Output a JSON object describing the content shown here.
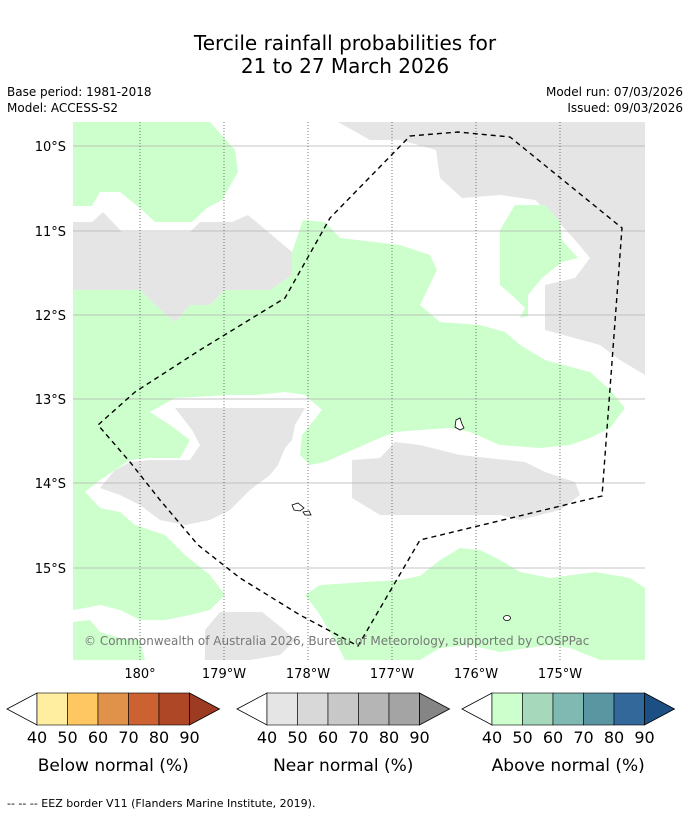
{
  "title_line1": "Tercile rainfall probabilities for",
  "title_line2": "21 to 27 March 2026",
  "base_period": "Base period: 1981-2018",
  "model": "Model: ACCESS-S2",
  "model_run": "Model run: 07/03/2026",
  "issued": "Issued: 09/03/2026",
  "copyright": "© Commonwealth of Australia 2026, Bureau of Meteorology, supported by COSPPac",
  "lat_labels": [
    "10°S",
    "11°S",
    "12°S",
    "13°S",
    "14°S",
    "15°S"
  ],
  "lon_labels": [
    "180°",
    "179°W",
    "178°W",
    "177°W",
    "176°W",
    "175°W"
  ],
  "legends": [
    {
      "title": "Below normal (%)",
      "ticks": [
        "40",
        "50",
        "60",
        "70",
        "80",
        "90"
      ],
      "colors": [
        "#ffeda0",
        "#fec762",
        "#e0914a",
        "#cc6232",
        "#ad4726",
        "#9c3a22"
      ]
    },
    {
      "title": "Near normal (%)",
      "ticks": [
        "40",
        "50",
        "60",
        "70",
        "80",
        "90"
      ],
      "colors": [
        "#e5e5e5",
        "#d8d8d8",
        "#c8c8c8",
        "#b5b5b5",
        "#a4a4a4",
        "#858585"
      ]
    },
    {
      "title": "Above normal (%)",
      "ticks": [
        "40",
        "50",
        "60",
        "70",
        "80",
        "90"
      ],
      "colors": [
        "#ccffcc",
        "#a6d8bc",
        "#80b8b2",
        "#5a96a2",
        "#32689a",
        "#1c4f83"
      ]
    }
  ],
  "footer": "--  --  -- EEZ border V11 (Flanders Marine Institute, 2019).",
  "colors": {
    "above_normal_40": "#ccffcc",
    "near_normal_40": "#e5e5e5",
    "gridline": "#b0b0b0"
  }
}
